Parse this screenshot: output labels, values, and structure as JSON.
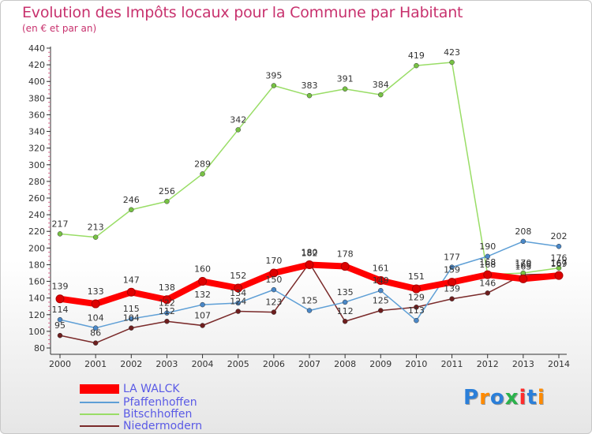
{
  "chart_data": {
    "type": "line",
    "title": "Evolution des Impôts locaux pour la Commune par Habitant",
    "subtitle": "(en € et par an)",
    "xlabel": "",
    "ylabel": "",
    "categories": [
      "2000",
      "2001",
      "2002",
      "2003",
      "2004",
      "2005",
      "2006",
      "2007",
      "2008",
      "2009",
      "2010",
      "2011",
      "2012",
      "2013",
      "2014"
    ],
    "yticks": [
      80,
      100,
      120,
      140,
      160,
      180,
      200,
      220,
      240,
      260,
      280,
      300,
      320,
      340,
      360,
      380,
      400,
      420,
      440
    ],
    "ylim": [
      80,
      440
    ],
    "grid": false,
    "legend_position": "bottom-left",
    "series": [
      {
        "name": "LA WALCK",
        "color": "#ff0000",
        "marker_color": "#dd0000",
        "values": [
          139,
          133,
          147,
          138,
          160,
          152,
          170,
          180,
          178,
          161,
          151,
          159,
          168,
          163,
          167
        ]
      },
      {
        "name": "Pfaffenhoffen",
        "color": "#5e9fd6",
        "marker_color": "#4a88c8",
        "values": [
          114,
          104,
          115,
          122,
          132,
          134,
          150,
          125,
          135,
          149,
          113,
          177,
          190,
          208,
          202
        ]
      },
      {
        "name": "Bitschhoffen",
        "color": "#99dd66",
        "marker_color": "#77c244",
        "values": [
          217,
          213,
          246,
          256,
          289,
          342,
          395,
          383,
          391,
          384,
          419,
          423,
          168,
          170,
          176
        ]
      },
      {
        "name": "Niedermodern",
        "color": "#7a2a2a",
        "marker_color": "#6e1e1e",
        "values": [
          95,
          86,
          104,
          112,
          107,
          124,
          123,
          182,
          112,
          125,
          129,
          139,
          146,
          168,
          169
        ]
      }
    ]
  },
  "logo": {
    "text": "Proxiti",
    "colors": [
      "#2b7fd9",
      "#ff8a00",
      "#2b7fd9",
      "#2bb24c",
      "#ff2b2b",
      "#2b7fd9",
      "#ff8a00"
    ]
  }
}
